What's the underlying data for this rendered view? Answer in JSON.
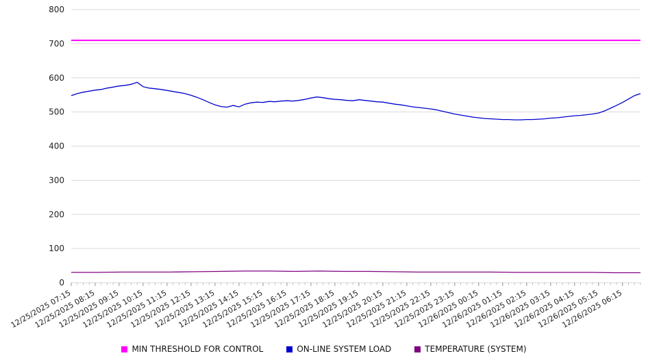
{
  "chart_data": {
    "type": "line",
    "title": "",
    "xlabel": "",
    "ylabel": "",
    "ylim": [
      0,
      800
    ],
    "yticks": [
      0,
      100,
      200,
      300,
      400,
      500,
      600,
      700,
      800
    ],
    "grid": true,
    "legend_position": "bottom",
    "x_label_every_nth_point": 4,
    "x_labels": [
      "12/25/2025 07:15",
      "12/25/2025 08:15",
      "12/25/2025 09:15",
      "12/25/2025 10:15",
      "12/25/2025 11:15",
      "12/25/2025 12:15",
      "12/25/2025 13:15",
      "12/25/2025 14:15",
      "12/25/2025 15:15",
      "12/25/2025 16:15",
      "12/25/2025 17:15",
      "12/25/2025 18:15",
      "12/25/2025 19:15",
      "12/25/2025 20:15",
      "12/25/2025 21:15",
      "12/25/2025 22:15",
      "12/25/2025 23:15",
      "12/26/2025 00:15",
      "12/26/2025 01:15",
      "12/26/2025 02:15",
      "12/26/2025 03:15",
      "12/26/2025 04:15",
      "12/26/2025 05:15",
      "12/26/2025 06:15"
    ],
    "series": [
      {
        "name": "MIN THRESHOLD FOR CONTROL",
        "color": "#ff00ff",
        "values": [
          710,
          710
        ]
      },
      {
        "name": "ON-LINE SYSTEM LOAD",
        "color": "#0000cc",
        "values": [
          548,
          554,
          558,
          561,
          564,
          566,
          570,
          573,
          576,
          578,
          581,
          587,
          574,
          570,
          568,
          566,
          563,
          560,
          557,
          554,
          549,
          543,
          536,
          528,
          521,
          516,
          514,
          519,
          515,
          523,
          527,
          529,
          528,
          531,
          530,
          532,
          533,
          532,
          534,
          537,
          541,
          544,
          542,
          539,
          537,
          536,
          534,
          533,
          536,
          534,
          532,
          530,
          529,
          526,
          523,
          521,
          518,
          515,
          513,
          511,
          509,
          506,
          502,
          498,
          494,
          491,
          488,
          485,
          483,
          481,
          480,
          479,
          478,
          478,
          477,
          477,
          478,
          478,
          479,
          480,
          482,
          483,
          485,
          487,
          489,
          490,
          492,
          494,
          497,
          503,
          511,
          519,
          528,
          538,
          548,
          554
        ]
      },
      {
        "name": "TEMPERATURE (SYSTEM)",
        "color": "#800080",
        "values": [
          30,
          30,
          31,
          31,
          31,
          32,
          33,
          34,
          34,
          33,
          34,
          33,
          33,
          32,
          31,
          31,
          31,
          31,
          30,
          30,
          30,
          30,
          29,
          29
        ]
      }
    ]
  }
}
